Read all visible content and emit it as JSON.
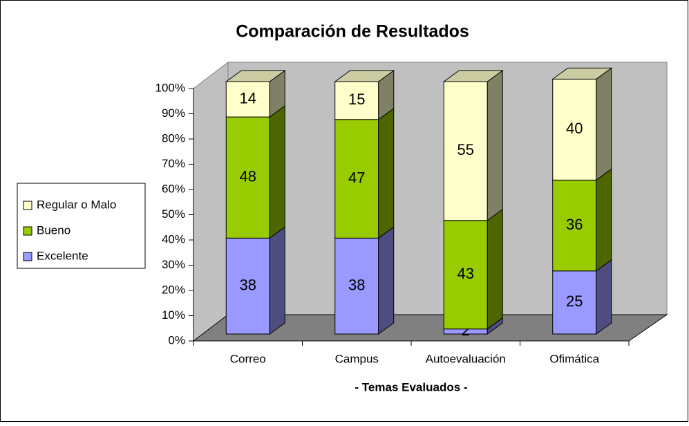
{
  "chart_data": {
    "type": "bar",
    "stacked": true,
    "title": "Comparación de Resultados",
    "x_label": "- Temas Evaluados -",
    "categories": [
      "Correo",
      "Campus",
      "Autoevaluación",
      "Ofimática"
    ],
    "series": [
      {
        "name": "Excelente",
        "color": "#9999ff",
        "values": [
          38,
          38,
          2,
          25
        ]
      },
      {
        "name": "Bueno",
        "color": "#99cc00",
        "values": [
          48,
          47,
          43,
          36
        ]
      },
      {
        "name": "Regular o Malo",
        "color": "#ffffcc",
        "values": [
          14,
          15,
          55,
          40
        ]
      }
    ],
    "ylim": [
      0,
      100
    ],
    "yticks": [
      {
        "value": 0,
        "label": "0%"
      },
      {
        "value": 10,
        "label": "10%"
      },
      {
        "value": 20,
        "label": "20%"
      },
      {
        "value": 30,
        "label": "30%"
      },
      {
        "value": 40,
        "label": "40%"
      },
      {
        "value": 50,
        "label": "50%"
      },
      {
        "value": 60,
        "label": "60%"
      },
      {
        "value": 70,
        "label": "70%"
      },
      {
        "value": 80,
        "label": "80%"
      },
      {
        "value": 90,
        "label": "90%"
      },
      {
        "value": 100,
        "label": "100%"
      }
    ],
    "legend": "left"
  }
}
